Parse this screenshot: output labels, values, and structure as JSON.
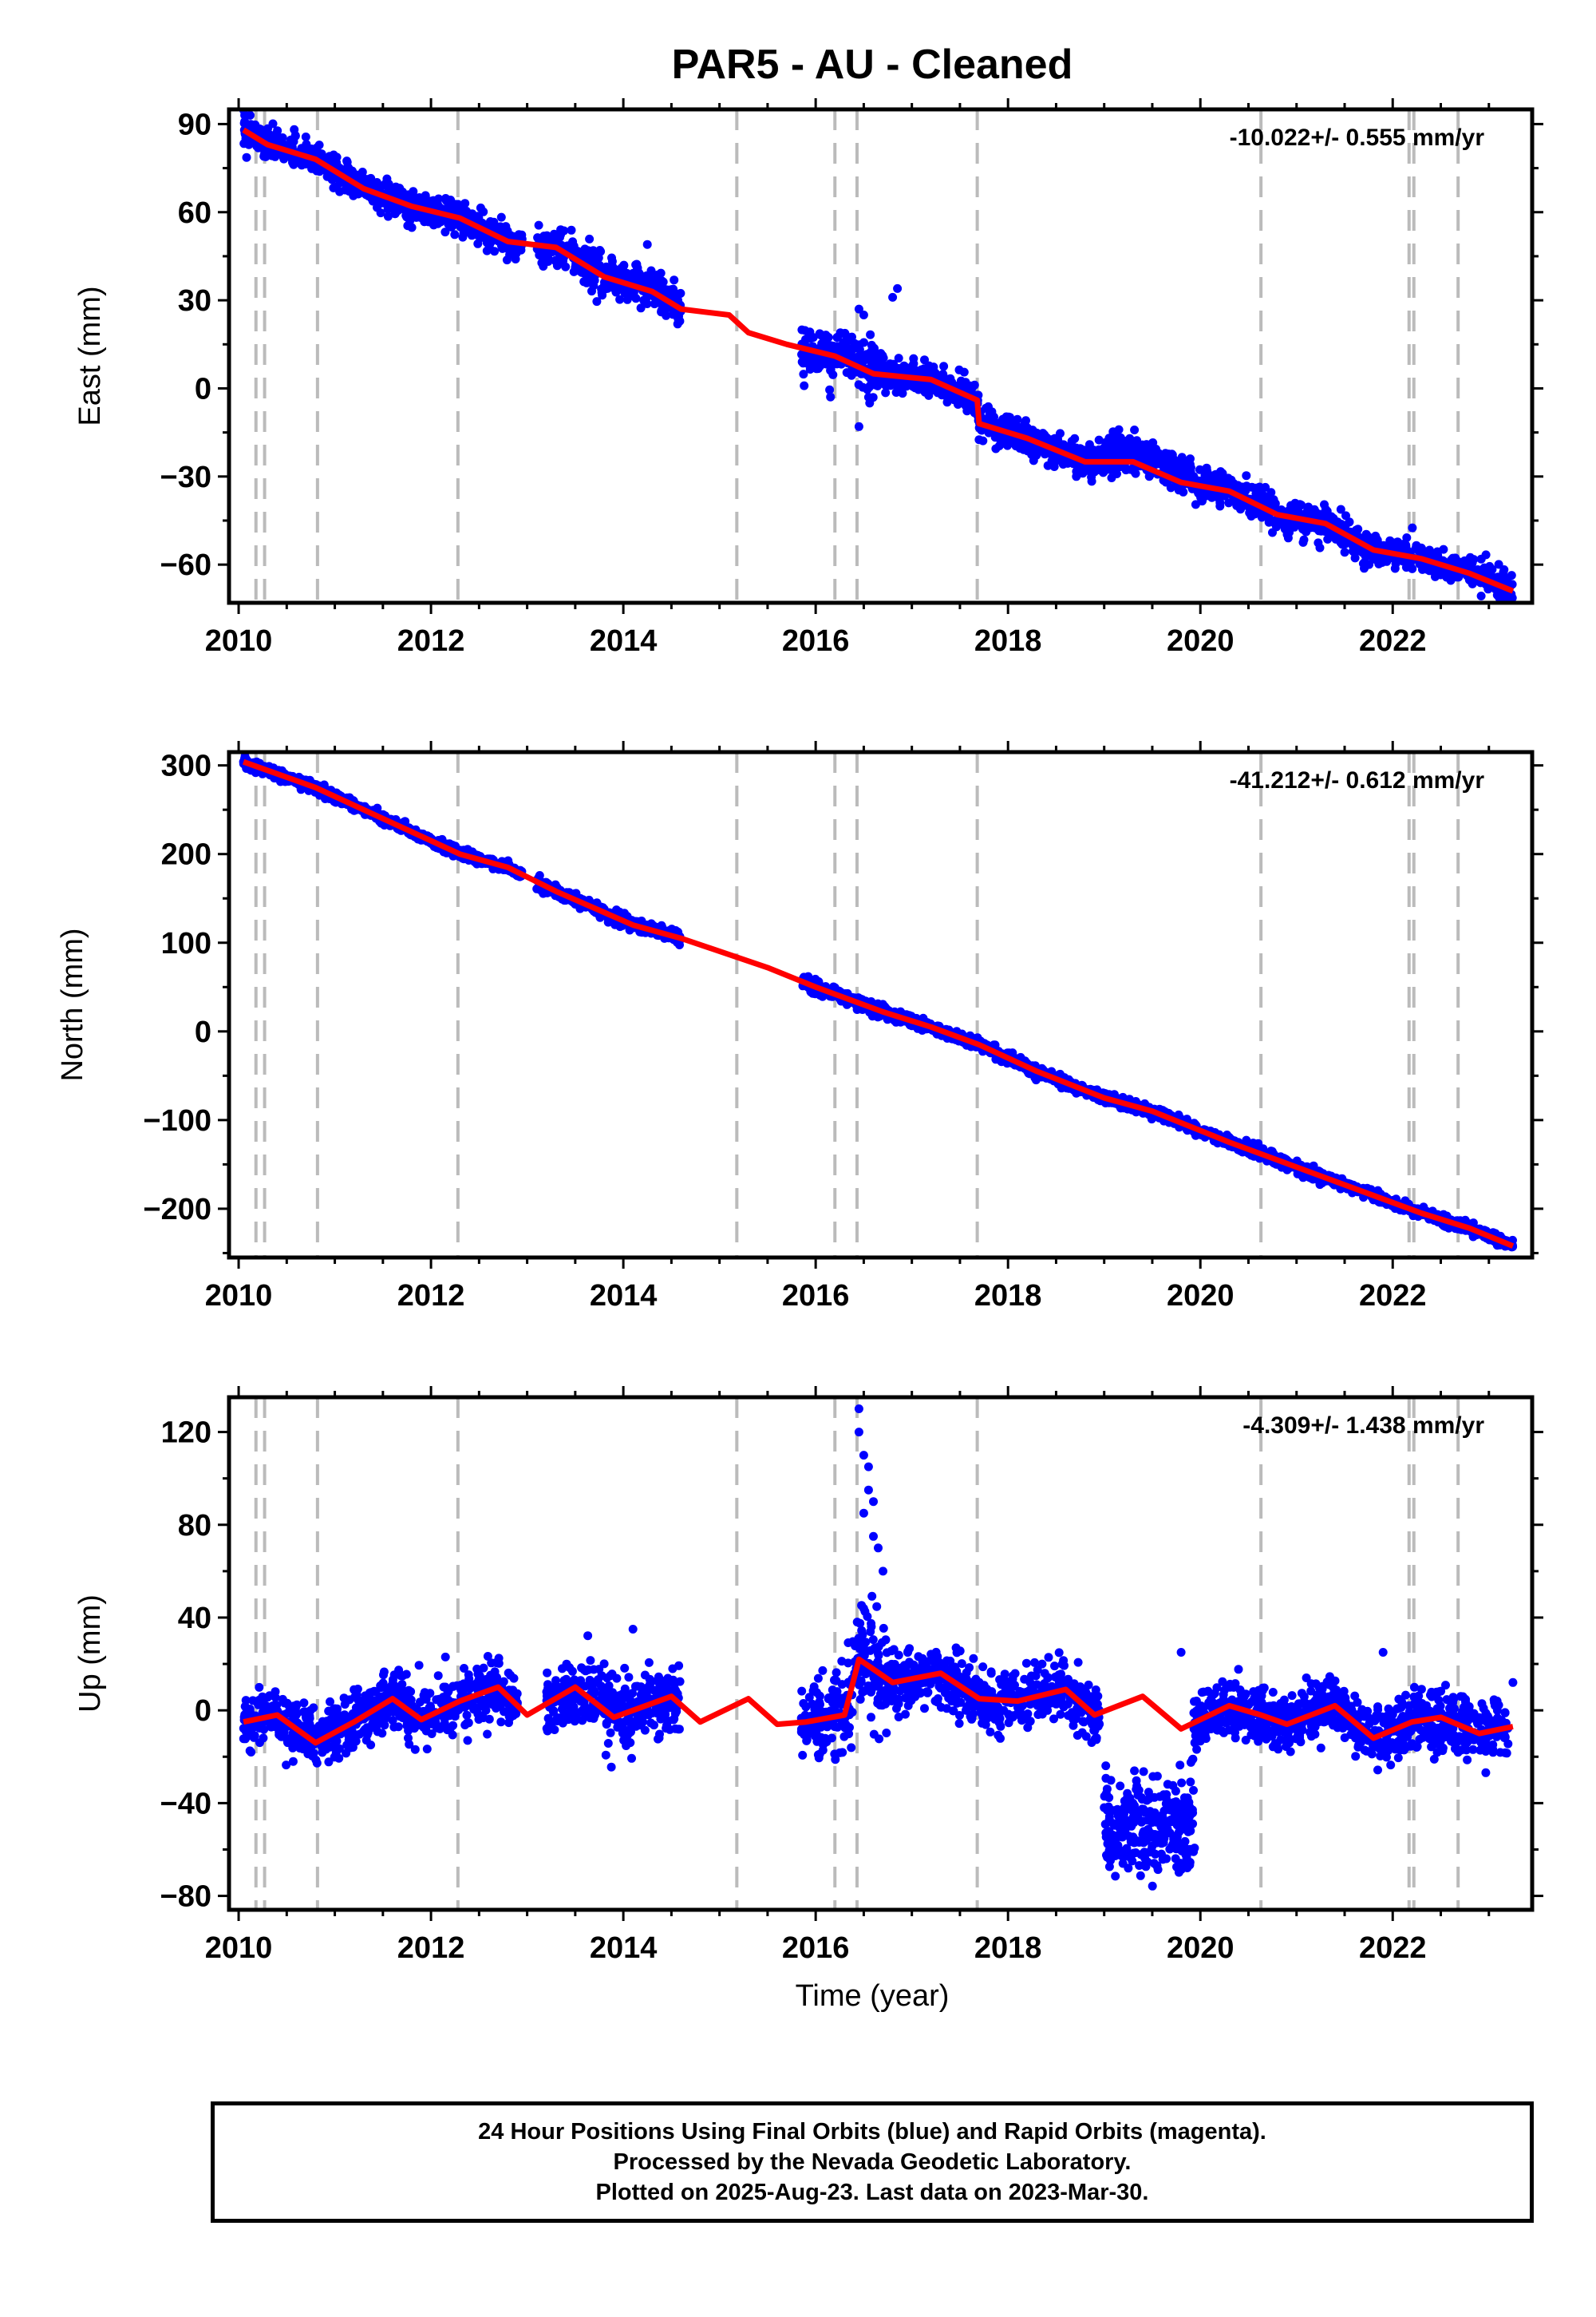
{
  "title": "PAR5  - AU - Cleaned",
  "xlabel": "Time (year)",
  "footer": {
    "line1": "24 Hour Positions Using Final Orbits (blue) and Rapid Orbits (magenta).",
    "line2": "Processed by the Nevada Geodetic Laboratory.",
    "line3": "Plotted on 2025-Aug-23. Last data on 2023-Mar-30."
  },
  "colors": {
    "data": "#0000ff",
    "model": "#ff0000",
    "event_lines": "#bbbbbb",
    "frame": "#000000"
  },
  "chart_data": [
    {
      "type": "scatter",
      "component": "east",
      "ylabel": "East (mm)",
      "rate_label": "-10.022+/- 0.555 mm/yr",
      "xlim": [
        2009.9,
        2023.45
      ],
      "ylim": [
        -73,
        95
      ],
      "xticks": [
        2010,
        2012,
        2014,
        2016,
        2018,
        2020,
        2022
      ],
      "yticks": [
        90,
        60,
        30,
        0,
        -30,
        -60
      ],
      "ytick_labels": [
        "90",
        "60",
        "30",
        "0",
        "−30",
        "−60"
      ],
      "xtick_labels": [
        "2010",
        "2012",
        "2014",
        "2016",
        "2018",
        "2020",
        "2022"
      ],
      "event_lines_x": [
        2010.18,
        2010.27,
        2010.82,
        2012.28,
        2015.18,
        2016.2,
        2016.43,
        2017.68,
        2020.63,
        2022.17,
        2022.22,
        2022.68
      ],
      "data_segments": [
        {
          "x": [
            2010.05,
            2012.95
          ],
          "noise": 2.5
        },
        {
          "x": [
            2013.1,
            2014.6
          ],
          "noise": 3.2
        },
        {
          "x": [
            2015.85,
            2016.75
          ],
          "noise": 3.8
        },
        {
          "x": [
            2016.75,
            2023.25
          ],
          "noise": 2.6
        }
      ],
      "outliers": [
        {
          "x": 2014.25,
          "y": 49
        },
        {
          "x": 2016.85,
          "y": 34
        },
        {
          "x": 2016.8,
          "y": 31
        },
        {
          "x": 2016.45,
          "y": 27
        },
        {
          "x": 2016.5,
          "y": 25
        },
        {
          "x": 2016.45,
          "y": -13
        },
        {
          "x": 2016.55,
          "y": -3
        },
        {
          "x": 2010.12,
          "y": 93
        }
      ],
      "model": [
        [
          2010.05,
          88
        ],
        [
          2010.3,
          83
        ],
        [
          2010.8,
          78
        ],
        [
          2011.3,
          68
        ],
        [
          2011.8,
          62
        ],
        [
          2012.3,
          58
        ],
        [
          2012.8,
          50
        ],
        [
          2013.3,
          48
        ],
        [
          2013.8,
          38
        ],
        [
          2014.3,
          33
        ],
        [
          2014.6,
          27
        ],
        [
          2015.1,
          25
        ],
        [
          2015.3,
          19
        ],
        [
          2015.7,
          15
        ],
        [
          2016.2,
          11
        ],
        [
          2016.6,
          5
        ],
        [
          2017.2,
          3
        ],
        [
          2017.68,
          -4
        ],
        [
          2017.7,
          -12
        ],
        [
          2018.2,
          -17
        ],
        [
          2018.8,
          -25
        ],
        [
          2019.3,
          -25
        ],
        [
          2019.8,
          -32
        ],
        [
          2020.3,
          -35
        ],
        [
          2020.8,
          -43
        ],
        [
          2021.3,
          -46
        ],
        [
          2021.8,
          -55
        ],
        [
          2022.3,
          -58
        ],
        [
          2022.8,
          -63
        ],
        [
          2023.25,
          -69
        ]
      ],
      "blobs": [
        {
          "x": [
            2019.0,
            2019.9
          ],
          "y_offset": 6
        },
        {
          "x": [
            2016.2,
            2016.7
          ],
          "y_offset": 4
        },
        {
          "x": [
            2013.2,
            2014.55
          ],
          "y_offset": 1.5
        }
      ]
    },
    {
      "type": "scatter",
      "component": "north",
      "ylabel": "North (mm)",
      "rate_label": "-41.212+/- 0.612 mm/yr",
      "xlim": [
        2009.9,
        2023.45
      ],
      "ylim": [
        -255,
        315
      ],
      "xticks": [
        2010,
        2012,
        2014,
        2016,
        2018,
        2020,
        2022
      ],
      "yticks": [
        300,
        200,
        100,
        0,
        -100,
        -200
      ],
      "ytick_labels": [
        "300",
        "200",
        "100",
        "0",
        "−100",
        "−200"
      ],
      "xtick_labels": [
        "2010",
        "2012",
        "2014",
        "2016",
        "2018",
        "2020",
        "2022"
      ],
      "event_lines_x": [
        2010.18,
        2010.27,
        2010.82,
        2012.28,
        2015.18,
        2016.2,
        2016.43,
        2017.68,
        2020.63,
        2022.17,
        2022.22,
        2022.68
      ],
      "data_segments": [
        {
          "x": [
            2010.05,
            2012.95
          ],
          "noise": 2.8
        },
        {
          "x": [
            2013.1,
            2014.6
          ],
          "noise": 3.2
        },
        {
          "x": [
            2015.85,
            2016.75
          ],
          "noise": 3.8
        },
        {
          "x": [
            2016.75,
            2023.25
          ],
          "noise": 3.0
        }
      ],
      "outliers": [],
      "model": [
        [
          2010.05,
          304
        ],
        [
          2010.8,
          275
        ],
        [
          2011.3,
          250
        ],
        [
          2012.3,
          200
        ],
        [
          2012.8,
          185
        ],
        [
          2013.3,
          158
        ],
        [
          2014.1,
          120
        ],
        [
          2014.6,
          105
        ],
        [
          2015.5,
          72
        ],
        [
          2016.0,
          50
        ],
        [
          2016.7,
          22
        ],
        [
          2017.2,
          5
        ],
        [
          2017.7,
          -15
        ],
        [
          2018.3,
          -45
        ],
        [
          2019.0,
          -75
        ],
        [
          2019.5,
          -90
        ],
        [
          2020.3,
          -125
        ],
        [
          2021.3,
          -165
        ],
        [
          2021.8,
          -185
        ],
        [
          2022.3,
          -205
        ],
        [
          2022.8,
          -222
        ],
        [
          2023.25,
          -242
        ]
      ],
      "blobs": []
    },
    {
      "type": "scatter",
      "component": "up",
      "ylabel": "Up (mm)",
      "rate_label": "-4.309+/- 1.438 mm/yr",
      "xlim": [
        2009.9,
        2023.45
      ],
      "ylim": [
        -86,
        135
      ],
      "xticks": [
        2010,
        2012,
        2014,
        2016,
        2018,
        2020,
        2022
      ],
      "yticks": [
        120,
        80,
        40,
        0,
        -40,
        -80
      ],
      "ytick_labels": [
        "120",
        "80",
        "40",
        "0",
        "−40",
        "−80"
      ],
      "xtick_labels": [
        "2010",
        "2012",
        "2014",
        "2016",
        "2018",
        "2020",
        "2022"
      ],
      "event_lines_x": [
        2010.18,
        2010.27,
        2010.82,
        2012.28,
        2015.18,
        2016.2,
        2016.43,
        2017.68,
        2020.63,
        2022.17,
        2022.22,
        2022.68
      ],
      "data_segments": [
        {
          "x": [
            2010.05,
            2012.9
          ],
          "noise": 6
        },
        {
          "x": [
            2013.2,
            2014.6
          ],
          "noise": 8
        },
        {
          "x": [
            2015.85,
            2016.2
          ],
          "noise": 7
        },
        {
          "x": [
            2016.2,
            2016.75
          ],
          "noise": 12
        },
        {
          "x": [
            2016.75,
            2018.95
          ],
          "noise": 6
        },
        {
          "x": [
            2019.9,
            2023.2
          ],
          "noise": 6
        }
      ],
      "outliers": [
        {
          "x": 2016.45,
          "y": 130
        },
        {
          "x": 2016.45,
          "y": 120
        },
        {
          "x": 2016.5,
          "y": 110
        },
        {
          "x": 2016.55,
          "y": 105
        },
        {
          "x": 2016.6,
          "y": 90
        },
        {
          "x": 2016.6,
          "y": 75
        },
        {
          "x": 2016.65,
          "y": 70
        },
        {
          "x": 2016.7,
          "y": 60
        },
        {
          "x": 2016.5,
          "y": 85
        },
        {
          "x": 2016.55,
          "y": 95
        },
        {
          "x": 2019.8,
          "y": 25
        },
        {
          "x": 2021.9,
          "y": 25
        },
        {
          "x": 2012.15,
          "y": 23
        },
        {
          "x": 2014.1,
          "y": 35
        },
        {
          "x": 2023.25,
          "y": 12
        }
      ],
      "model": [
        [
          2010.05,
          -5
        ],
        [
          2010.4,
          -2
        ],
        [
          2010.8,
          -14
        ],
        [
          2011.2,
          -5
        ],
        [
          2011.6,
          5
        ],
        [
          2011.9,
          -4
        ],
        [
          2012.3,
          4
        ],
        [
          2012.7,
          10
        ],
        [
          2013.0,
          -2
        ],
        [
          2013.5,
          10
        ],
        [
          2013.9,
          -3
        ],
        [
          2014.5,
          6
        ],
        [
          2014.8,
          -5
        ],
        [
          2015.3,
          5
        ],
        [
          2015.6,
          -6
        ],
        [
          2015.9,
          -5
        ],
        [
          2016.3,
          -2
        ],
        [
          2016.45,
          22
        ],
        [
          2016.8,
          12
        ],
        [
          2017.3,
          16
        ],
        [
          2017.7,
          5
        ],
        [
          2018.1,
          4
        ],
        [
          2018.6,
          9
        ],
        [
          2018.9,
          -2
        ],
        [
          2019.4,
          6
        ],
        [
          2019.8,
          -8
        ],
        [
          2020.3,
          2
        ],
        [
          2020.63,
          -2
        ],
        [
          2020.9,
          -6
        ],
        [
          2021.4,
          2
        ],
        [
          2021.8,
          -12
        ],
        [
          2022.2,
          -5
        ],
        [
          2022.5,
          -3
        ],
        [
          2022.9,
          -10
        ],
        [
          2023.25,
          -7
        ]
      ],
      "blobs": [
        {
          "x": [
            2019.0,
            2019.95
          ],
          "y_center": -50,
          "noise": 11
        }
      ]
    }
  ]
}
